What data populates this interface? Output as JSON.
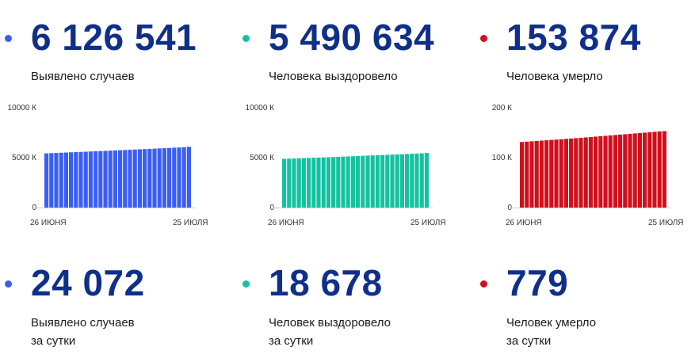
{
  "stats": [
    {
      "total": "6 126 541",
      "total_label": "Выявлено случаев",
      "daily": "24 072",
      "daily_label_1": "Выявлено случаев",
      "daily_label_2": "за сутки",
      "color": "#3a5ef5"
    },
    {
      "total": "5 490 634",
      "total_label": "Человека выздоровело",
      "daily": "18 678",
      "daily_label_1": "Человек выздоровело",
      "daily_label_2": "за сутки",
      "color": "#14c2a0"
    },
    {
      "total": "153 874",
      "total_label": "Человека умерло",
      "daily": "779",
      "daily_label_1": "Человек умерло",
      "daily_label_2": "за сутки",
      "color": "#d0101c"
    }
  ],
  "chart_data": [
    {
      "type": "bar",
      "color": "#3a5ef5",
      "ylim": [
        0,
        10000
      ],
      "yticks": [
        "10000 К",
        "5000 К",
        "0"
      ],
      "ytick_values": [
        10000,
        5000,
        0
      ],
      "xticks": [
        "26 июня",
        "25 июля"
      ],
      "series": [
        {
          "values": [
            5430,
            5451,
            5471,
            5492,
            5512,
            5533,
            5554,
            5575,
            5596,
            5617,
            5638,
            5659,
            5680,
            5702,
            5723,
            5745,
            5767,
            5789,
            5811,
            5833,
            5856,
            5879,
            5902,
            5925,
            5948,
            5972,
            5995,
            6018,
            6040,
            6083
          ]
        }
      ]
    },
    {
      "type": "bar",
      "color": "#14c2a0",
      "ylim": [
        0,
        10000
      ],
      "yticks": [
        "10000 К",
        "5000 К",
        "0"
      ],
      "ytick_values": [
        10000,
        5000,
        0
      ],
      "xticks": [
        "26 июня",
        "25 июля"
      ],
      "series": [
        {
          "values": [
            4880,
            4898,
            4916,
            4934,
            4952,
            4970,
            4989,
            5008,
            5027,
            5046,
            5065,
            5084,
            5103,
            5122,
            5142,
            5162,
            5182,
            5202,
            5222,
            5242,
            5262,
            5282,
            5302,
            5323,
            5344,
            5366,
            5388,
            5410,
            5432,
            5471
          ]
        }
      ]
    },
    {
      "type": "bar",
      "color": "#d0101c",
      "ylim": [
        0,
        200
      ],
      "yticks": [
        "200 К",
        "100 К",
        "0"
      ],
      "ytick_values": [
        200,
        100,
        0
      ],
      "xticks": [
        "26 июня",
        "25 июля"
      ],
      "series": [
        {
          "values": [
            131.3,
            132.0,
            132.7,
            133.4,
            134.1,
            134.8,
            135.5,
            136.2,
            136.9,
            137.6,
            138.3,
            139.0,
            139.7,
            140.5,
            141.3,
            142.1,
            142.9,
            143.7,
            144.5,
            145.3,
            146.1,
            146.9,
            147.7,
            148.5,
            149.3,
            150.1,
            150.9,
            151.7,
            152.5,
            153.1
          ]
        }
      ]
    }
  ]
}
